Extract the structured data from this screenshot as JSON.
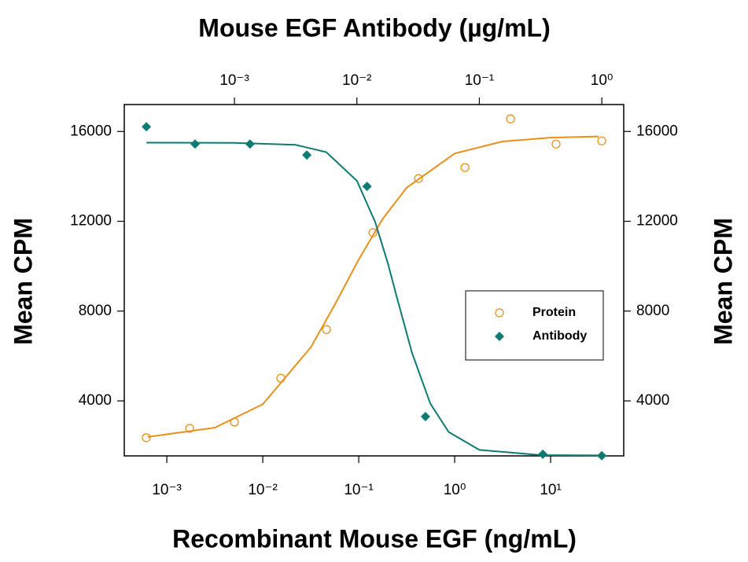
{
  "chart_data": {
    "type": "scatter",
    "x_title": "Recombinant Mouse EGF (ng/mL)",
    "x2_title": "Mouse EGF Antibody (µg/mL)",
    "y_title": "Mean CPM",
    "y2_title": "Mean CPM",
    "xscale": "log",
    "x2scale": "log",
    "xlim": [
      0.00036,
      57.8
    ],
    "xticks": [
      {
        "value": 0.001,
        "label": "10⁻³"
      },
      {
        "value": 0.01,
        "label": "10⁻²"
      },
      {
        "value": 0.1,
        "label": "10⁻¹"
      },
      {
        "value": 1,
        "label": "10⁰"
      },
      {
        "value": 10,
        "label": "10¹"
      }
    ],
    "x2lim": [
      0.000126,
      1.51
    ],
    "x2ticks": [
      {
        "value": 0.001,
        "label": "10⁻³"
      },
      {
        "value": 0.01,
        "label": "10⁻²"
      },
      {
        "value": 0.1,
        "label": "10⁻¹"
      },
      {
        "value": 1,
        "label": "10⁰"
      }
    ],
    "ylim": [
      1550,
      17200
    ],
    "yticks": [
      4000,
      8000,
      12000,
      16000
    ],
    "y2lim": [
      1550,
      17200
    ],
    "y2ticks": [
      4000,
      8000,
      12000,
      16000
    ],
    "legend": "center-right",
    "series": [
      {
        "name": "Protein",
        "color": "#e8901c",
        "marker": "open-circle",
        "x": [
          0.00061,
          0.00173,
          0.00507,
          0.0154,
          0.0461,
          0.1406,
          0.42,
          1.28,
          3.82,
          11.4,
          34.1
        ],
        "values": [
          2358,
          2777,
          3057,
          5013,
          7179,
          11493,
          13904,
          14393,
          16559,
          15441,
          15581
        ],
        "fit": {
          "x": [
            0.000631,
            0.00316,
            0.01,
            0.0316,
            0.0562,
            0.1,
            0.178,
            0.316,
            1,
            3.16,
            10,
            31.6
          ],
          "values": [
            2395,
            2806,
            3852,
            6383,
            8276,
            10298,
            12111,
            13497,
            15020,
            15556,
            15726,
            15778
          ]
        }
      },
      {
        "name": "Antibody",
        "color": "#0e7b72",
        "marker": "diamond",
        "axis": "x2",
        "x": [
          0.000191,
          0.000477,
          0.00134,
          0.0039,
          0.0121,
          0.0363,
          0.33,
          1.0
        ],
        "values": [
          16210,
          15441,
          15441,
          14952,
          13555,
          3301,
          1624,
          1560
        ],
        "fit": {
          "x": [
            0.000191,
            0.001,
            0.00316,
            0.00562,
            0.01,
            0.0141,
            0.0178,
            0.0214,
            0.0282,
            0.0398,
            0.0562,
            0.1,
            0.316,
            1
          ],
          "values": [
            15500,
            15495,
            15404,
            15081,
            13803,
            11966,
            10174,
            8535,
            6137,
            3876,
            2613,
            1818,
            1583,
            1570
          ]
        }
      }
    ]
  }
}
